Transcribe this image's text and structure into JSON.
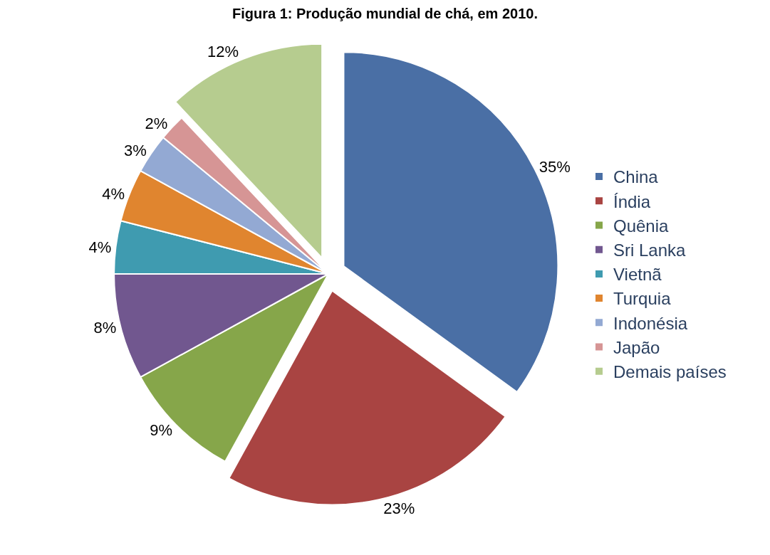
{
  "chart_data": {
    "type": "pie",
    "title": "Figura 1: Produção mundial de chá, em 2010.",
    "categories": [
      "China",
      "Índia",
      "Quênia",
      "Sri Lanka",
      "Vietnã",
      "Turquia",
      "Indonésia",
      "Japão",
      "Demais países"
    ],
    "values": [
      35,
      23,
      9,
      8,
      4,
      4,
      3,
      2,
      12
    ],
    "colors": [
      "#4a6fa5",
      "#a94442",
      "#86a64a",
      "#71578f",
      "#3f9bb0",
      "#e0852f",
      "#93a9d3",
      "#d69595",
      "#b6cc8f"
    ],
    "value_labels": [
      "35%",
      "23%",
      "9%",
      "8%",
      "4%",
      "4%",
      "3%",
      "2%",
      "12%"
    ],
    "legend": "right"
  }
}
